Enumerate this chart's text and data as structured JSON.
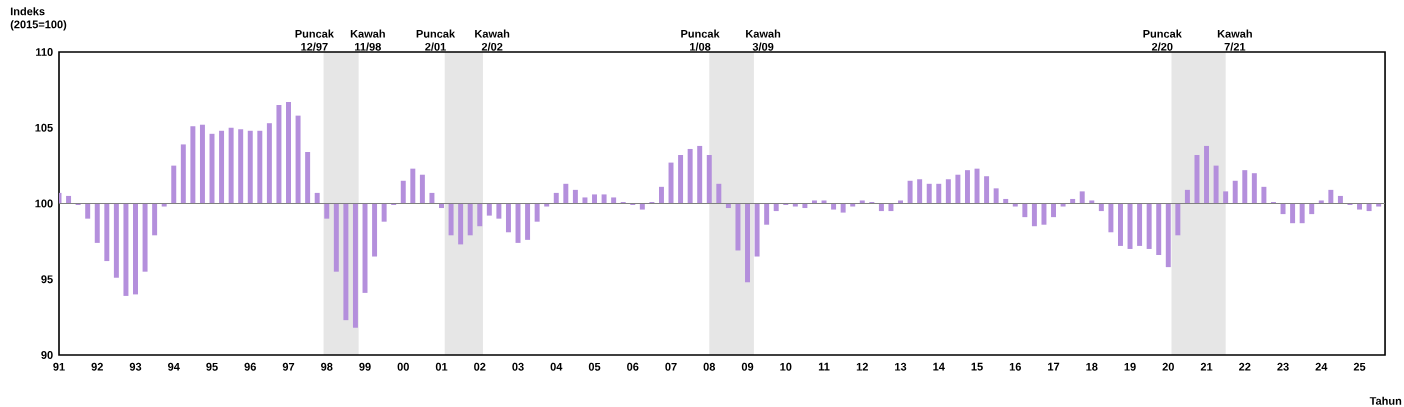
{
  "chart_data": {
    "type": "bar",
    "ylabel": "Indeks (2015=100)",
    "xlabel": "Tahun",
    "color": "#b48fdc",
    "x": [
      "1991-01",
      "1991-04",
      "1991-07",
      "1991-10",
      "1992-01",
      "1992-04",
      "1992-07",
      "1992-10",
      "1993-01",
      "1993-04",
      "1993-07",
      "1993-10",
      "1994-01",
      "1994-04",
      "1994-07",
      "1994-10",
      "1995-01",
      "1995-04",
      "1995-07",
      "1995-10",
      "1996-01",
      "1996-04",
      "1996-07",
      "1996-10",
      "1997-01",
      "1997-04",
      "1997-07",
      "1997-10",
      "1998-01",
      "1998-04",
      "1998-07",
      "1998-10",
      "1999-01",
      "1999-04",
      "1999-07",
      "1999-10",
      "2000-01",
      "2000-04",
      "2000-07",
      "2000-10",
      "2001-01",
      "2001-04",
      "2001-07",
      "2001-10",
      "2002-01",
      "2002-04",
      "2002-07",
      "2002-10",
      "2003-01",
      "2003-04",
      "2003-07",
      "2003-10",
      "2004-01",
      "2004-04",
      "2004-07",
      "2004-10",
      "2005-01",
      "2005-04",
      "2005-07",
      "2005-10",
      "2006-01",
      "2006-04",
      "2006-07",
      "2006-10",
      "2007-01",
      "2007-04",
      "2007-07",
      "2007-10",
      "2008-01",
      "2008-04",
      "2008-07",
      "2008-10",
      "2009-01",
      "2009-04",
      "2009-07",
      "2009-10",
      "2010-01",
      "2010-04",
      "2010-07",
      "2010-10",
      "2011-01",
      "2011-04",
      "2011-07",
      "2011-10",
      "2012-01",
      "2012-04",
      "2012-07",
      "2012-10",
      "2013-01",
      "2013-04",
      "2013-07",
      "2013-10",
      "2014-01",
      "2014-04",
      "2014-07",
      "2014-10",
      "2015-01",
      "2015-04",
      "2015-07",
      "2015-10",
      "2016-01",
      "2016-04",
      "2016-07",
      "2016-10",
      "2017-01",
      "2017-04",
      "2017-07",
      "2017-10",
      "2018-01",
      "2018-04",
      "2018-07",
      "2018-10",
      "2019-01",
      "2019-04",
      "2019-07",
      "2019-10",
      "2020-01",
      "2020-04",
      "2020-07",
      "2020-10",
      "2021-01",
      "2021-04",
      "2021-07",
      "2021-10",
      "2022-01",
      "2022-04",
      "2022-07",
      "2022-10",
      "2023-01",
      "2023-04",
      "2023-07",
      "2023-10",
      "2024-01",
      "2024-04",
      "2024-07",
      "2024-10",
      "2025-01",
      "2025-04",
      "2025-07"
    ],
    "values": [
      0.7,
      0.5,
      -0.1,
      -1.0,
      -2.6,
      -3.8,
      -4.9,
      -6.1,
      -6.0,
      -4.5,
      -2.1,
      -0.2,
      2.5,
      3.9,
      5.1,
      5.2,
      4.6,
      4.8,
      5.0,
      4.9,
      4.8,
      4.8,
      5.3,
      6.5,
      6.7,
      5.8,
      3.4,
      0.7,
      -1.0,
      -4.5,
      -7.7,
      -8.2,
      -5.9,
      -3.5,
      -1.2,
      -0.1,
      1.5,
      2.3,
      1.9,
      0.7,
      -0.3,
      -2.1,
      -2.7,
      -2.1,
      -1.5,
      -0.8,
      -1.0,
      -1.9,
      -2.6,
      -2.4,
      -1.2,
      -0.2,
      0.7,
      1.3,
      0.9,
      0.4,
      0.6,
      0.6,
      0.4,
      0.1,
      -0.1,
      -0.4,
      0.1,
      1.1,
      2.7,
      3.2,
      3.6,
      3.8,
      3.2,
      1.3,
      -0.3,
      -3.1,
      -5.2,
      -3.5,
      -1.4,
      -0.5,
      -0.1,
      -0.2,
      -0.3,
      0.2,
      0.2,
      -0.4,
      -0.6,
      -0.2,
      0.2,
      0.1,
      -0.5,
      -0.5,
      0.2,
      1.5,
      1.6,
      1.3,
      1.3,
      1.6,
      1.9,
      2.2,
      2.3,
      1.8,
      1.0,
      0.3,
      -0.2,
      -0.9,
      -1.5,
      -1.4,
      -0.9,
      -0.2,
      0.3,
      0.8,
      0.2,
      -0.5,
      -1.9,
      -2.8,
      -3.0,
      -2.8,
      -3.0,
      -3.4,
      -4.2,
      -2.1,
      0.9,
      3.2,
      3.8,
      2.5,
      0.8,
      1.5,
      2.2,
      2.0,
      1.1,
      0.1,
      -0.7,
      -1.3,
      -1.3,
      -0.7,
      0.2,
      0.9,
      0.5,
      -0.1,
      -0.4,
      -0.5,
      -0.2
    ],
    "base": [
      100,
      100,
      100,
      100,
      100,
      100,
      100,
      100,
      100,
      100,
      100,
      100,
      100,
      100,
      100,
      100,
      100,
      100,
      100,
      100,
      100,
      100,
      100,
      100,
      100,
      100,
      100,
      100,
      100,
      100,
      100,
      100,
      100,
      100,
      100,
      100,
      100,
      100,
      100,
      100,
      100,
      100,
      100,
      100,
      100,
      100,
      100,
      100,
      100,
      100,
      100,
      100,
      100,
      100,
      100,
      100,
      100,
      100,
      100,
      100,
      100,
      100,
      100,
      100,
      100,
      100,
      100,
      100,
      100,
      100,
      100,
      100,
      100,
      100,
      100,
      100,
      100,
      100,
      100,
      100,
      100,
      100,
      100,
      100,
      100,
      100,
      100,
      100,
      100,
      100,
      100,
      100,
      100,
      100,
      100,
      100,
      100,
      100,
      100,
      100,
      100,
      100,
      100,
      100,
      100,
      100,
      100,
      100,
      100,
      100,
      100,
      100,
      100,
      100,
      100,
      100,
      100,
      100,
      100,
      100,
      100,
      100,
      100,
      100,
      100,
      100,
      100,
      100,
      100,
      100,
      100,
      100,
      100,
      100,
      100,
      100,
      100,
      100,
      100
    ],
    "xlim": [
      "1991-01",
      "2025-09"
    ],
    "ylim": [
      90,
      110
    ],
    "yticks": [
      90,
      95,
      100,
      105,
      110
    ],
    "xticks": [
      {
        "value": "1991",
        "label": "91"
      },
      {
        "value": "1992",
        "label": "92"
      },
      {
        "value": "1993",
        "label": "93"
      },
      {
        "value": "1994",
        "label": "94"
      },
      {
        "value": "1995",
        "label": "95"
      },
      {
        "value": "1996",
        "label": "96"
      },
      {
        "value": "1997",
        "label": "97"
      },
      {
        "value": "1998",
        "label": "98"
      },
      {
        "value": "1999",
        "label": "99"
      },
      {
        "value": "2000",
        "label": "00"
      },
      {
        "value": "2001",
        "label": "01"
      },
      {
        "value": "2002",
        "label": "02"
      },
      {
        "value": "2003",
        "label": "03"
      },
      {
        "value": "2004",
        "label": "04"
      },
      {
        "value": "2005",
        "label": "05"
      },
      {
        "value": "2006",
        "label": "06"
      },
      {
        "value": "2007",
        "label": "07"
      },
      {
        "value": "2008",
        "label": "08"
      },
      {
        "value": "2009",
        "label": "09"
      },
      {
        "value": "2010",
        "label": "10"
      },
      {
        "value": "2011",
        "label": "11"
      },
      {
        "value": "2012",
        "label": "12"
      },
      {
        "value": "2013",
        "label": "13"
      },
      {
        "value": "2014",
        "label": "14"
      },
      {
        "value": "2015",
        "label": "15"
      },
      {
        "value": "2016",
        "label": "16"
      },
      {
        "value": "2017",
        "label": "17"
      },
      {
        "value": "2018",
        "label": "18"
      },
      {
        "value": "2019",
        "label": "19"
      },
      {
        "value": "2020",
        "label": "20"
      },
      {
        "value": "2021",
        "label": "21"
      },
      {
        "value": "2022",
        "label": "22"
      },
      {
        "value": "2023",
        "label": "23"
      },
      {
        "value": "2024",
        "label": "24"
      },
      {
        "value": "2025",
        "label": "25"
      }
    ],
    "bands": [
      {
        "axis": "x",
        "from": "1997-12",
        "to": "1998-11",
        "color": "#e6e6e6"
      },
      {
        "axis": "x",
        "from": "2001-02",
        "to": "2002-02",
        "color": "#e6e6e6"
      },
      {
        "axis": "x",
        "from": "2008-01",
        "to": "2009-03",
        "color": "#e6e6e6"
      },
      {
        "axis": "x",
        "from": "2020-02",
        "to": "2021-07",
        "color": "#e6e6e6"
      }
    ],
    "annotations": [
      "Puncak 12/97",
      "Kawah 11/98",
      "Puncak 2/01",
      "Kawah 2/02",
      "Puncak 1/08",
      "Kawah 3/09",
      "Puncak 2/20",
      "Kawah 7/21"
    ]
  }
}
